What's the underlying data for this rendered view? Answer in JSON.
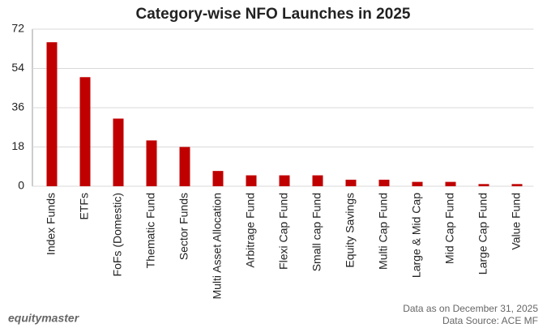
{
  "chart_data": {
    "type": "bar",
    "title": "Category-wise NFO Launches in 2025",
    "categories": [
      "Index Funds",
      "ETFs",
      "FoFs (Domestic)",
      "Thematic Fund",
      "Sector Funds",
      "Multi Asset Allocation",
      "Arbitrage Fund",
      "Flexi Cap Fund",
      "Small cap Fund",
      "Equity Savings",
      "Multi Cap Fund",
      "Large & Mid Cap",
      "Mid Cap Fund",
      "Large Cap Fund",
      "Value Fund"
    ],
    "values": [
      66,
      50,
      31,
      21,
      18,
      7,
      5,
      5,
      5,
      3,
      3,
      2,
      2,
      1,
      1
    ],
    "color": "#c00000",
    "ylim": [
      0,
      72
    ],
    "yticks": [
      0,
      18,
      36,
      54,
      72
    ],
    "grid": true,
    "brand": "equitymaster",
    "notes": [
      "Data as on December 31, 2025",
      "Data Source: ACE MF"
    ]
  }
}
